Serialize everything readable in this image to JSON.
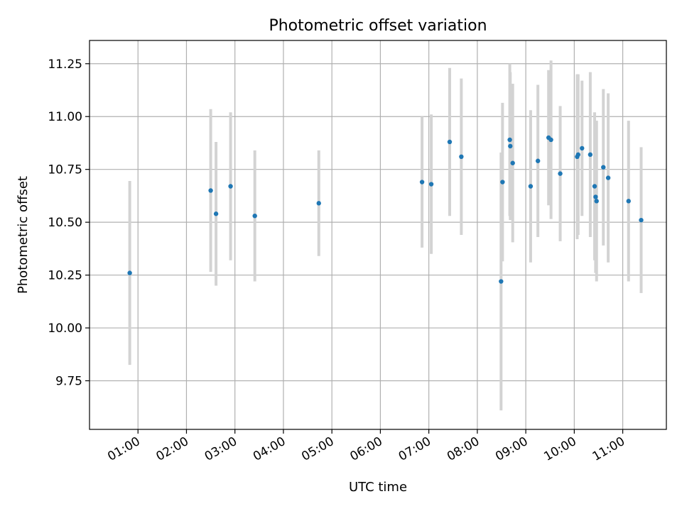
{
  "chart_data": {
    "type": "scatter",
    "title": "Photometric offset variation",
    "xlabel": "UTC time",
    "ylabel": "Photometric offset",
    "x_unit": "hours UTC",
    "xlim": [
      0.0,
      11.9
    ],
    "ylim": [
      9.52,
      11.36
    ],
    "x_ticks": [
      1,
      2,
      3,
      4,
      5,
      6,
      7,
      8,
      9,
      10,
      11
    ],
    "x_tick_labels": [
      "01:00",
      "02:00",
      "03:00",
      "04:00",
      "05:00",
      "06:00",
      "07:00",
      "08:00",
      "09:00",
      "10:00",
      "11:00"
    ],
    "y_ticks": [
      9.75,
      10.0,
      10.25,
      10.5,
      10.75,
      11.0,
      11.25
    ],
    "y_tick_labels": [
      "9.75",
      "10.00",
      "10.25",
      "10.50",
      "10.75",
      "11.00",
      "11.25"
    ],
    "grid": true,
    "marker_color": "#1f77b4",
    "errorbar_color": "#d3d3d3",
    "series": [
      {
        "points": [
          {
            "x": 0.83,
            "y": 10.26,
            "err": 0.435
          },
          {
            "x": 2.5,
            "y": 10.65,
            "err": 0.385
          },
          {
            "x": 2.61,
            "y": 10.54,
            "err": 0.34
          },
          {
            "x": 2.91,
            "y": 10.67,
            "err": 0.35
          },
          {
            "x": 3.41,
            "y": 10.53,
            "err": 0.31
          },
          {
            "x": 4.73,
            "y": 10.59,
            "err": 0.25
          },
          {
            "x": 6.86,
            "y": 10.69,
            "err": 0.31
          },
          {
            "x": 7.05,
            "y": 10.68,
            "err": 0.33
          },
          {
            "x": 7.43,
            "y": 10.88,
            "err": 0.35
          },
          {
            "x": 7.67,
            "y": 10.81,
            "err": 0.37
          },
          {
            "x": 8.49,
            "y": 10.22,
            "err": 0.61
          },
          {
            "x": 8.52,
            "y": 10.69,
            "err": 0.375
          },
          {
            "x": 8.67,
            "y": 10.89,
            "err": 0.36
          },
          {
            "x": 8.68,
            "y": 10.86,
            "err": 0.35
          },
          {
            "x": 8.73,
            "y": 10.78,
            "err": 0.375
          },
          {
            "x": 9.1,
            "y": 10.67,
            "err": 0.36
          },
          {
            "x": 9.25,
            "y": 10.79,
            "err": 0.36
          },
          {
            "x": 9.47,
            "y": 10.9,
            "err": 0.32
          },
          {
            "x": 9.52,
            "y": 10.89,
            "err": 0.375
          },
          {
            "x": 9.71,
            "y": 10.73,
            "err": 0.32
          },
          {
            "x": 10.06,
            "y": 10.81,
            "err": 0.39
          },
          {
            "x": 10.08,
            "y": 10.82,
            "err": 0.38
          },
          {
            "x": 10.16,
            "y": 10.85,
            "err": 0.32
          },
          {
            "x": 10.33,
            "y": 10.82,
            "err": 0.39
          },
          {
            "x": 10.42,
            "y": 10.67,
            "err": 0.35
          },
          {
            "x": 10.44,
            "y": 10.62,
            "err": 0.36
          },
          {
            "x": 10.46,
            "y": 10.6,
            "err": 0.38
          },
          {
            "x": 10.6,
            "y": 10.76,
            "err": 0.37
          },
          {
            "x": 10.7,
            "y": 10.71,
            "err": 0.4
          },
          {
            "x": 11.12,
            "y": 10.6,
            "err": 0.38
          },
          {
            "x": 11.38,
            "y": 10.51,
            "err": 0.345
          }
        ]
      }
    ]
  }
}
